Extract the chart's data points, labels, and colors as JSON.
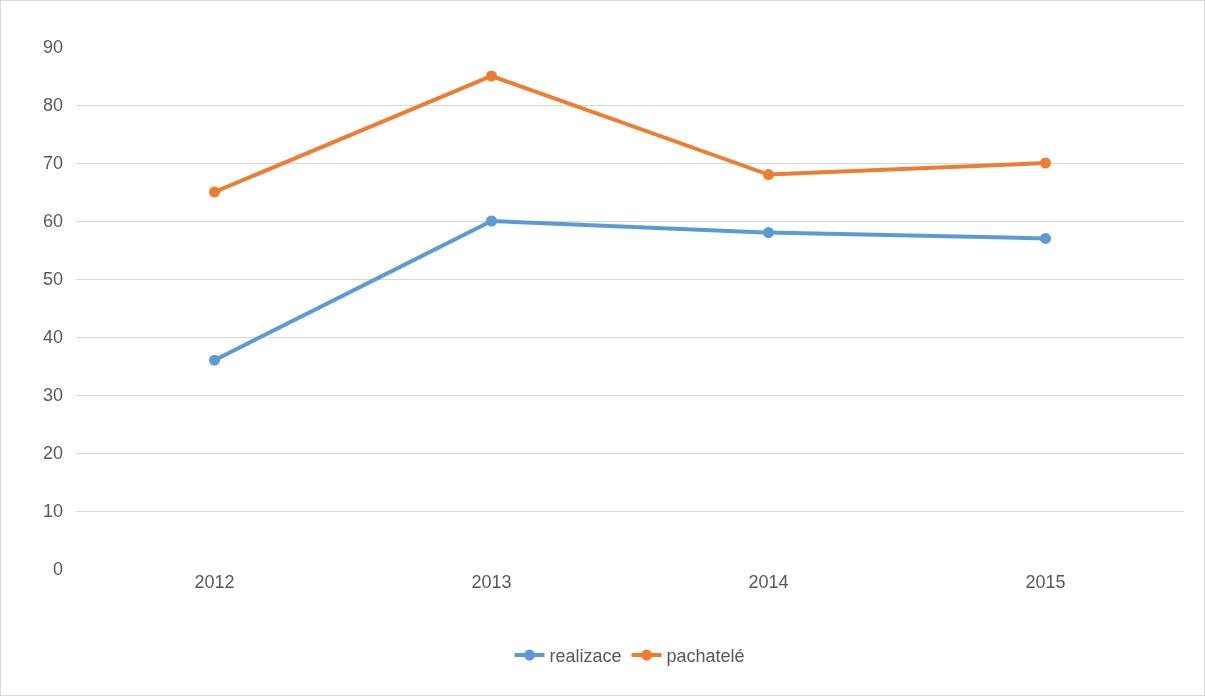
{
  "chart_data": {
    "type": "line",
    "categories": [
      "2012",
      "2013",
      "2014",
      "2015"
    ],
    "series": [
      {
        "name": "realizace",
        "color": "#5b9bd5",
        "values": [
          36,
          60,
          58,
          57
        ]
      },
      {
        "name": "pachatelé",
        "color": "#ed7d31",
        "values": [
          65,
          85,
          68,
          70
        ]
      }
    ],
    "ylim": [
      0,
      90
    ],
    "yticks": [
      0,
      10,
      20,
      30,
      40,
      50,
      60,
      70,
      80,
      90
    ],
    "grid": "y",
    "legend": "bottom",
    "marker": "circle",
    "line_style": "solid"
  }
}
